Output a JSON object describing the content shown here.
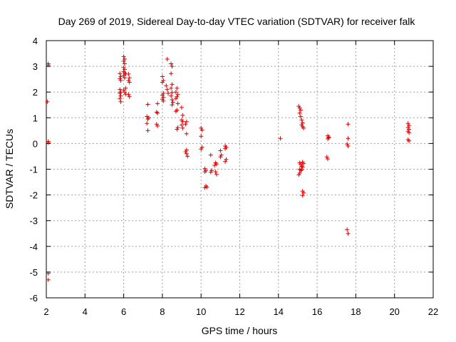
{
  "chart_data": {
    "type": "scatter",
    "title": "Day 269 of 2019, Sidereal Day-to-day VTEC variation (SDTVAR) for receiver falk",
    "xlabel": "GPS time / hours",
    "ylabel": "SDTVAR / TECUs",
    "xlim": [
      2,
      22
    ],
    "ylim": [
      -6,
      4
    ],
    "xticks": [
      "2",
      "4",
      "6",
      "8",
      "10",
      "12",
      "14",
      "16",
      "18",
      "20",
      "22"
    ],
    "yticks": [
      "4",
      "3",
      "2",
      "1",
      "0",
      "-1",
      "-2",
      "-3",
      "-4",
      "-5",
      "-6"
    ],
    "grid": true,
    "marker": "plus",
    "color": "#e00000",
    "series": [
      {
        "name": "SDTVAR",
        "points": [
          [
            2.1,
            3.1
          ],
          [
            2.1,
            3.05
          ],
          [
            2.05,
            1.62
          ],
          [
            2.1,
            0.08
          ],
          [
            2.1,
            0.03
          ],
          [
            2.1,
            -5.05
          ],
          [
            2.1,
            -5.3
          ],
          [
            5.8,
            2.72
          ],
          [
            5.85,
            2.6
          ],
          [
            5.8,
            2.52
          ],
          [
            5.85,
            2.45
          ],
          [
            5.8,
            2.1
          ],
          [
            5.85,
            2.0
          ],
          [
            5.8,
            1.95
          ],
          [
            5.85,
            1.85
          ],
          [
            5.8,
            1.75
          ],
          [
            5.85,
            1.62
          ],
          [
            6.0,
            3.38
          ],
          [
            6.05,
            3.28
          ],
          [
            6.0,
            3.2
          ],
          [
            6.05,
            3.1
          ],
          [
            6.0,
            2.95
          ],
          [
            6.05,
            2.88
          ],
          [
            6.0,
            2.8
          ],
          [
            6.05,
            2.75
          ],
          [
            6.1,
            2.7
          ],
          [
            6.0,
            2.65
          ],
          [
            6.05,
            2.55
          ],
          [
            6.1,
            2.15
          ],
          [
            6.0,
            2.08
          ],
          [
            6.05,
            2.0
          ],
          [
            6.1,
            1.92
          ],
          [
            6.25,
            2.7
          ],
          [
            6.3,
            2.55
          ],
          [
            6.25,
            2.45
          ],
          [
            6.3,
            2.38
          ],
          [
            6.25,
            1.9
          ],
          [
            6.3,
            1.82
          ],
          [
            7.25,
            1.52
          ],
          [
            7.2,
            1.05
          ],
          [
            7.3,
            1.0
          ],
          [
            7.25,
            0.95
          ],
          [
            7.2,
            0.78
          ],
          [
            7.25,
            0.5
          ],
          [
            7.75,
            1.55
          ],
          [
            7.7,
            1.22
          ],
          [
            7.75,
            1.18
          ],
          [
            7.7,
            0.75
          ],
          [
            7.75,
            0.68
          ],
          [
            8.0,
            2.6
          ],
          [
            8.05,
            2.45
          ],
          [
            8.0,
            2.38
          ],
          [
            8.05,
            1.95
          ],
          [
            8.0,
            1.88
          ],
          [
            8.05,
            1.8
          ],
          [
            8.0,
            1.72
          ],
          [
            8.05,
            1.65
          ],
          [
            8.25,
            3.28
          ],
          [
            8.2,
            2.25
          ],
          [
            8.25,
            2.1
          ],
          [
            8.3,
            1.95
          ],
          [
            8.45,
            3.1
          ],
          [
            8.5,
            3.0
          ],
          [
            8.45,
            2.72
          ],
          [
            8.5,
            2.3
          ],
          [
            8.45,
            2.15
          ],
          [
            8.5,
            1.98
          ],
          [
            8.45,
            1.85
          ],
          [
            8.5,
            1.7
          ],
          [
            8.55,
            1.6
          ],
          [
            8.5,
            1.5
          ],
          [
            8.75,
            2.15
          ],
          [
            8.7,
            2.0
          ],
          [
            8.8,
            1.9
          ],
          [
            8.75,
            1.82
          ],
          [
            8.7,
            1.75
          ],
          [
            8.8,
            1.55
          ],
          [
            8.75,
            1.3
          ],
          [
            8.7,
            1.25
          ],
          [
            8.8,
            0.62
          ],
          [
            8.75,
            0.55
          ],
          [
            9.0,
            1.4
          ],
          [
            9.05,
            1.1
          ],
          [
            9.0,
            0.92
          ],
          [
            9.05,
            0.85
          ],
          [
            9.0,
            0.72
          ],
          [
            9.05,
            0.6
          ],
          [
            9.25,
            0.85
          ],
          [
            9.2,
            0.75
          ],
          [
            9.25,
            0.38
          ],
          [
            9.25,
            -0.25
          ],
          [
            9.2,
            -0.32
          ],
          [
            9.25,
            -0.4
          ],
          [
            9.3,
            -0.5
          ],
          [
            10.0,
            0.6
          ],
          [
            10.05,
            0.52
          ],
          [
            10.0,
            0.28
          ],
          [
            10.05,
            -0.15
          ],
          [
            10.0,
            -0.22
          ],
          [
            10.2,
            -0.98
          ],
          [
            10.25,
            -1.05
          ],
          [
            10.2,
            -1.1
          ],
          [
            10.25,
            -1.65
          ],
          [
            10.3,
            -1.7
          ],
          [
            10.2,
            -1.72
          ],
          [
            10.5,
            -0.45
          ],
          [
            10.55,
            -1.05
          ],
          [
            10.5,
            -1.12
          ],
          [
            10.75,
            -0.75
          ],
          [
            10.8,
            -0.8
          ],
          [
            10.7,
            -0.85
          ],
          [
            10.75,
            -1.1
          ],
          [
            10.8,
            -1.2
          ],
          [
            11.0,
            -0.28
          ],
          [
            11.05,
            -0.45
          ],
          [
            11.0,
            -0.52
          ],
          [
            11.25,
            -0.1
          ],
          [
            11.3,
            -0.15
          ],
          [
            11.25,
            -0.2
          ],
          [
            11.3,
            -0.62
          ],
          [
            11.25,
            -0.7
          ],
          [
            14.1,
            0.2
          ],
          [
            15.05,
            1.45
          ],
          [
            15.1,
            1.38
          ],
          [
            15.15,
            1.3
          ],
          [
            15.1,
            1.18
          ],
          [
            15.15,
            1.05
          ],
          [
            15.2,
            0.92
          ],
          [
            15.25,
            0.8
          ],
          [
            15.2,
            0.72
          ],
          [
            15.25,
            0.65
          ],
          [
            15.3,
            0.6
          ],
          [
            15.1,
            -0.75
          ],
          [
            15.15,
            -0.82
          ],
          [
            15.2,
            -0.88
          ],
          [
            15.25,
            -0.92
          ],
          [
            15.3,
            -0.78
          ],
          [
            15.25,
            -0.72
          ],
          [
            15.1,
            -1.0
          ],
          [
            15.15,
            -1.05
          ],
          [
            15.1,
            -1.15
          ],
          [
            15.05,
            -1.22
          ],
          [
            15.2,
            -1.02
          ],
          [
            15.25,
            -1.85
          ],
          [
            15.3,
            -1.92
          ],
          [
            15.25,
            -2.02
          ],
          [
            16.55,
            0.3
          ],
          [
            16.6,
            0.22
          ],
          [
            16.55,
            0.18
          ],
          [
            16.6,
            0.25
          ],
          [
            16.5,
            -0.52
          ],
          [
            16.55,
            -0.6
          ],
          [
            17.6,
            0.75
          ],
          [
            17.6,
            0.2
          ],
          [
            17.55,
            -0.02
          ],
          [
            17.6,
            -0.1
          ],
          [
            17.55,
            -3.35
          ],
          [
            17.6,
            -3.5
          ],
          [
            20.7,
            0.78
          ],
          [
            20.75,
            0.7
          ],
          [
            20.7,
            0.62
          ],
          [
            20.75,
            0.55
          ],
          [
            20.7,
            0.48
          ],
          [
            20.75,
            0.42
          ],
          [
            20.7,
            0.15
          ],
          [
            20.75,
            0.1
          ]
        ]
      }
    ]
  }
}
